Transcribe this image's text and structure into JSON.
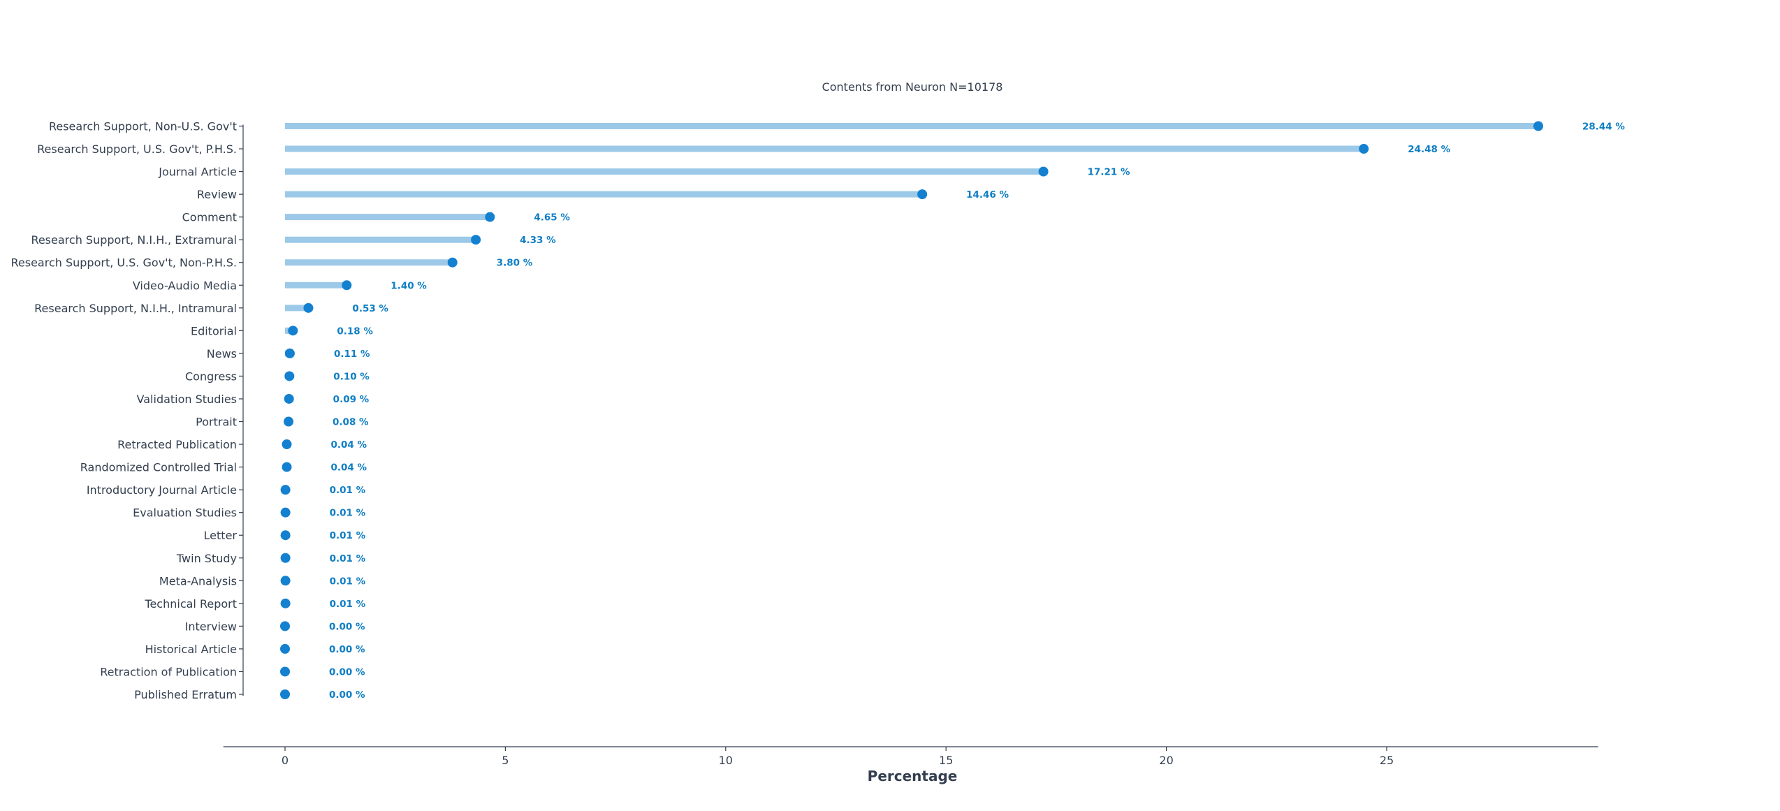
{
  "chart_data": {
    "type": "lollipop",
    "title": "Contents from Neuron N=10178",
    "xlabel": "Percentage",
    "xlim": [
      -1.4,
      29.8
    ],
    "xticks": [
      0,
      5,
      10,
      15,
      20,
      25
    ],
    "value_suffix": " %",
    "colors": {
      "stem": "#9dc9e8",
      "dot": "#1480d0",
      "label": "#0f7ec4",
      "axis": "#333f4f",
      "text": "#333f4f"
    },
    "categories": [
      "Research Support, Non-U.S. Gov't",
      "Research Support, U.S. Gov't, P.H.S.",
      "Journal Article",
      "Review",
      "Comment",
      "Research Support, N.I.H., Extramural",
      "Research Support, U.S. Gov't, Non-P.H.S.",
      "Video-Audio Media",
      "Research Support, N.I.H., Intramural",
      "Editorial",
      "News",
      "Congress",
      "Validation Studies",
      "Portrait",
      "Retracted Publication",
      "Randomized Controlled Trial",
      "Introductory Journal Article",
      "Evaluation Studies",
      "Letter",
      "Twin Study",
      "Meta-Analysis",
      "Technical Report",
      "Interview",
      "Historical Article",
      "Retraction of Publication",
      "Published Erratum"
    ],
    "values": [
      28.44,
      24.48,
      17.21,
      14.46,
      4.65,
      4.33,
      3.8,
      1.4,
      0.53,
      0.18,
      0.11,
      0.1,
      0.09,
      0.08,
      0.04,
      0.04,
      0.01,
      0.01,
      0.01,
      0.01,
      0.01,
      0.01,
      0.0,
      0.0,
      0.0,
      0.0
    ],
    "value_labels": [
      "28.44 %",
      "24.48 %",
      "17.21 %",
      "14.46 %",
      "4.65 %",
      "4.33 %",
      "3.80 %",
      "1.40 %",
      "0.53 %",
      "0.18 %",
      "0.11 %",
      "0.10 %",
      "0.09 %",
      "0.08 %",
      "0.04 %",
      "0.04 %",
      "0.01 %",
      "0.01 %",
      "0.01 %",
      "0.01 %",
      "0.01 %",
      "0.01 %",
      "0.00 %",
      "0.00 %",
      "0.00 %",
      "0.00 %"
    ]
  }
}
